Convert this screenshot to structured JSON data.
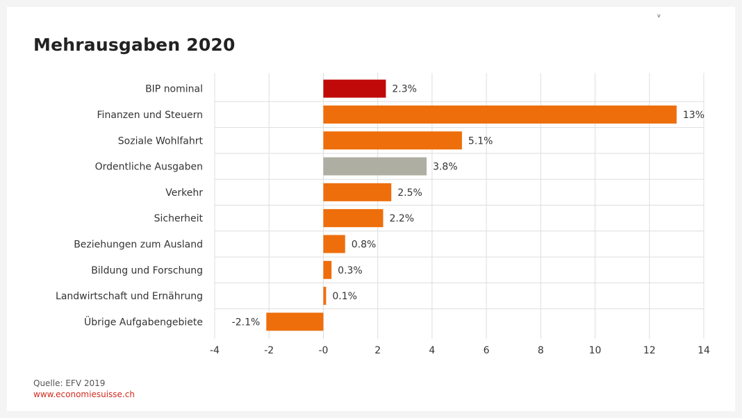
{
  "title": "Mehrausgaben 2020",
  "corner_mark": "v",
  "source": {
    "text": "Quelle: EFV 2019",
    "website": "www.economiesuisse.ch"
  },
  "colors": {
    "highlight": "#c00a0a",
    "default": "#ee6e0b",
    "neutral": "#aeaea2",
    "grid": "#dddddd"
  },
  "chart_data": {
    "type": "bar",
    "orientation": "horizontal",
    "title": "Mehrausgaben 2020",
    "categories": [
      "BIP nominal",
      "Finanzen und Steuern",
      "Soziale Wohlfahrt",
      "Ordentliche Ausgaben",
      "Verkehr",
      "Sicherheit",
      "Beziehungen zum Ausland",
      "Bildung und Forschung",
      "Landwirtschaft und Ernährung",
      "Übrige Aufgabengebiete"
    ],
    "values": [
      2.3,
      13,
      5.1,
      3.8,
      2.5,
      2.2,
      0.8,
      0.3,
      0.1,
      -2.1
    ],
    "value_labels": [
      "2.3%",
      "13%",
      "5.1%",
      "3.8%",
      "2.5%",
      "2.2%",
      "0.8%",
      "0.3%",
      "0.1%",
      "-2.1%"
    ],
    "bar_colors": [
      "highlight",
      "default",
      "default",
      "neutral",
      "default",
      "default",
      "default",
      "default",
      "default",
      "default"
    ],
    "xlim": [
      -4,
      14
    ],
    "xticks": [
      -4,
      -2,
      0,
      2,
      4,
      6,
      8,
      10,
      12,
      14
    ],
    "xtick_labels": [
      "-4",
      "-2",
      "-0",
      "2",
      "4",
      "6",
      "8",
      "10",
      "12",
      "14"
    ],
    "grid": true,
    "legend": false
  }
}
